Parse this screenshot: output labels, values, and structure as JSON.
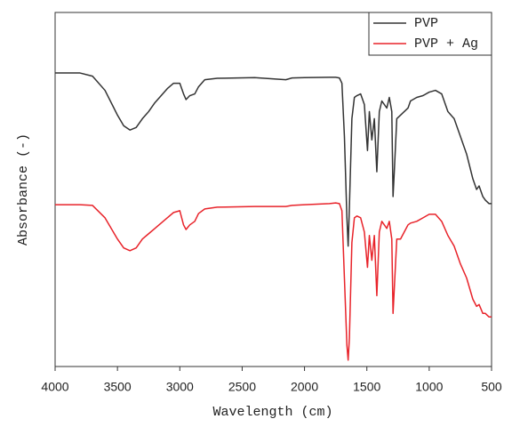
{
  "chart_data": {
    "type": "line",
    "xlabel": "Wavelength (cm)",
    "ylabel": "Absorbance (-)",
    "x": [
      4000,
      3800,
      3700,
      3600,
      3500,
      3450,
      3400,
      3350,
      3300,
      3250,
      3200,
      3100,
      3050,
      3000,
      2970,
      2950,
      2920,
      2880,
      2850,
      2800,
      2700,
      2400,
      2150,
      2100,
      2000,
      1800,
      1750,
      1720,
      1700,
      1680,
      1660,
      1650,
      1640,
      1620,
      1600,
      1580,
      1550,
      1520,
      1495,
      1480,
      1460,
      1440,
      1420,
      1400,
      1380,
      1340,
      1320,
      1300,
      1290,
      1280,
      1260,
      1230,
      1200,
      1170,
      1150,
      1100,
      1050,
      1000,
      950,
      900,
      850,
      800,
      750,
      700,
      650,
      620,
      600,
      570,
      550,
      520,
      500
    ],
    "series": [
      {
        "name": "PVP",
        "color": "#333333",
        "values": [
          0.829,
          0.829,
          0.82,
          0.78,
          0.71,
          0.68,
          0.668,
          0.675,
          0.7,
          0.72,
          0.745,
          0.785,
          0.8,
          0.8,
          0.77,
          0.754,
          0.765,
          0.77,
          0.79,
          0.81,
          0.814,
          0.816,
          0.81,
          0.815,
          0.816,
          0.817,
          0.817,
          0.815,
          0.8,
          0.65,
          0.42,
          0.34,
          0.45,
          0.7,
          0.76,
          0.765,
          0.77,
          0.74,
          0.61,
          0.72,
          0.64,
          0.7,
          0.55,
          0.72,
          0.75,
          0.73,
          0.76,
          0.72,
          0.48,
          0.55,
          0.7,
          0.71,
          0.72,
          0.73,
          0.75,
          0.76,
          0.765,
          0.775,
          0.78,
          0.77,
          0.72,
          0.7,
          0.65,
          0.6,
          0.53,
          0.5,
          0.51,
          0.48,
          0.47,
          0.46,
          0.46
        ]
      },
      {
        "name": "PVP + Ag",
        "color": "#e8232a",
        "values": [
          0.457,
          0.457,
          0.455,
          0.42,
          0.36,
          0.335,
          0.327,
          0.335,
          0.36,
          0.375,
          0.39,
          0.42,
          0.435,
          0.44,
          0.4,
          0.387,
          0.4,
          0.41,
          0.432,
          0.445,
          0.45,
          0.452,
          0.452,
          0.455,
          0.457,
          0.46,
          0.462,
          0.46,
          0.44,
          0.25,
          0.06,
          0.018,
          0.08,
          0.35,
          0.42,
          0.425,
          0.42,
          0.38,
          0.28,
          0.37,
          0.3,
          0.37,
          0.2,
          0.38,
          0.41,
          0.39,
          0.41,
          0.36,
          0.15,
          0.22,
          0.36,
          0.36,
          0.38,
          0.4,
          0.405,
          0.41,
          0.42,
          0.43,
          0.43,
          0.41,
          0.37,
          0.34,
          0.29,
          0.25,
          0.19,
          0.17,
          0.175,
          0.15,
          0.15,
          0.14,
          0.14
        ]
      }
    ],
    "xlim": [
      4000,
      500
    ],
    "xticks": [
      4000,
      3500,
      3000,
      2500,
      2000,
      1500,
      1000,
      500
    ],
    "ylim": [
      0,
      1
    ],
    "legend": "upper right"
  }
}
